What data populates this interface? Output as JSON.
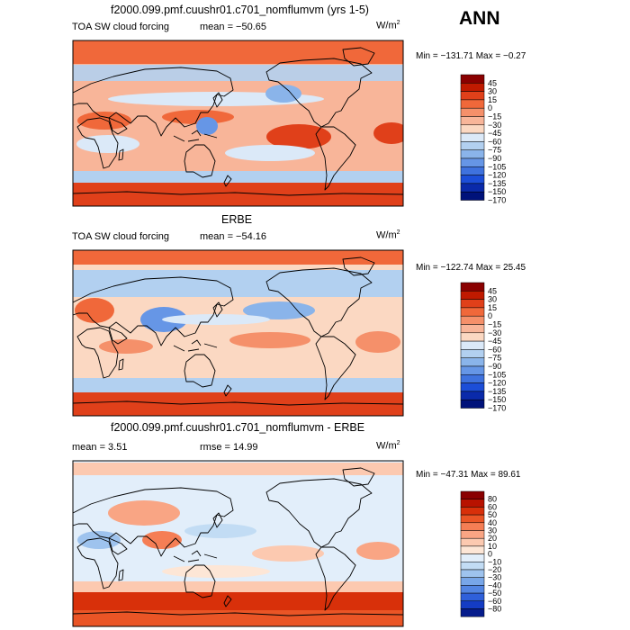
{
  "season": "ANN",
  "colors": {
    "panel_scale": [
      "#8a0000",
      "#c01a00",
      "#e0401a",
      "#f0683a",
      "#f5906a",
      "#f8b599",
      "#fbd8c2",
      "#dbe9f8",
      "#b2d0f0",
      "#8ab4ea",
      "#6696e6",
      "#3f72de",
      "#1c4ed8",
      "#0a2aaa",
      "#00127a"
    ],
    "diff_scale": [
      "#8a0000",
      "#b81200",
      "#d8300a",
      "#ea5526",
      "#f57e55",
      "#f9a584",
      "#fcc9b0",
      "#fde6d6",
      "#e2eefa",
      "#c2dcf4",
      "#9ec3ee",
      "#78a6e8",
      "#5385e2",
      "#2f60da",
      "#143cc4",
      "#061c8c"
    ]
  },
  "chart_data": [
    {
      "type": "heatmap",
      "title": "f2000.099.pmf.cuushr01.c701_nomflumvm (yrs 1-5)",
      "variable": "TOA SW cloud forcing",
      "mean_text": "mean = −50.65",
      "units_base": "W/m",
      "units_exp": "2",
      "minmax_text": "Min = −131.71  Max =   −0.27",
      "colorbar_levels": [
        "45",
        "30",
        "15",
        "0",
        "−15",
        "−30",
        "−45",
        "−60",
        "−75",
        "−90",
        "−105",
        "−120",
        "−135",
        "−150",
        "−170"
      ]
    },
    {
      "type": "heatmap",
      "title": "ERBE",
      "variable": "TOA SW cloud forcing",
      "mean_text": "mean = −54.16",
      "units_base": "W/m",
      "units_exp": "2",
      "minmax_text": "Min = −122.74  Max =   25.45",
      "colorbar_levels": [
        "45",
        "30",
        "15",
        "0",
        "−15",
        "−30",
        "−45",
        "−60",
        "−75",
        "−90",
        "−105",
        "−120",
        "−135",
        "−150",
        "−170"
      ]
    },
    {
      "type": "heatmap",
      "title": "f2000.099.pmf.cuushr01.c701_nomflumvm - ERBE",
      "mean_text": "mean =     3.51",
      "rmse_text": "rmse =   14.99",
      "units_base": "W/m",
      "units_exp": "2",
      "minmax_text": "Min = −47.31  Max =   89.61",
      "colorbar_levels": [
        "80",
        "60",
        "50",
        "40",
        "30",
        "20",
        "10",
        "0",
        "−10",
        "−20",
        "−30",
        "−40",
        "−50",
        "−60",
        "−80"
      ]
    }
  ]
}
